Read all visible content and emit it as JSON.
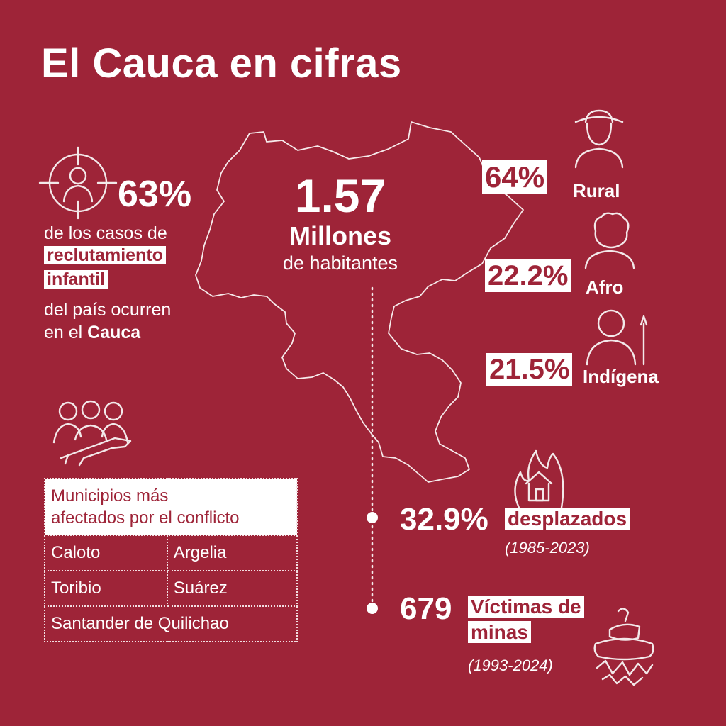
{
  "title": "El Cauca en cifras",
  "recruitment": {
    "value": "63%",
    "line1": "de los casos de",
    "highlight1": "reclutamiento",
    "highlight2": "infantil",
    "line2": "del país ocurren",
    "line3_prefix": "en el",
    "line3_bold": "Cauca"
  },
  "population": {
    "value": "1.57",
    "unit": "Millones",
    "label": "de habitantes"
  },
  "demographics": [
    {
      "value": "64%",
      "label": "Rural",
      "icon": "farmer-hat-icon"
    },
    {
      "value": "22.2%",
      "label": "Afro",
      "icon": "afro-person-icon"
    },
    {
      "value": "21.5%",
      "label": "Indígena",
      "icon": "indigenous-person-icon"
    }
  ],
  "displaced": {
    "value": "32.9%",
    "label": "desplazados",
    "range": "(1985-2023)"
  },
  "mines": {
    "value": "679",
    "label1": "Víctimas de",
    "label2": "minas",
    "range": "(1993-2024)"
  },
  "municipalities": {
    "header": [
      "Municipios más",
      "afectados por el conflicto"
    ],
    "rows": [
      [
        "Caloto",
        "Argelia"
      ],
      [
        "Toribio",
        "Suárez"
      ]
    ],
    "last": "Santander de Quilichao"
  },
  "colors": {
    "background": "#9e2438",
    "text": "#ffffff"
  }
}
